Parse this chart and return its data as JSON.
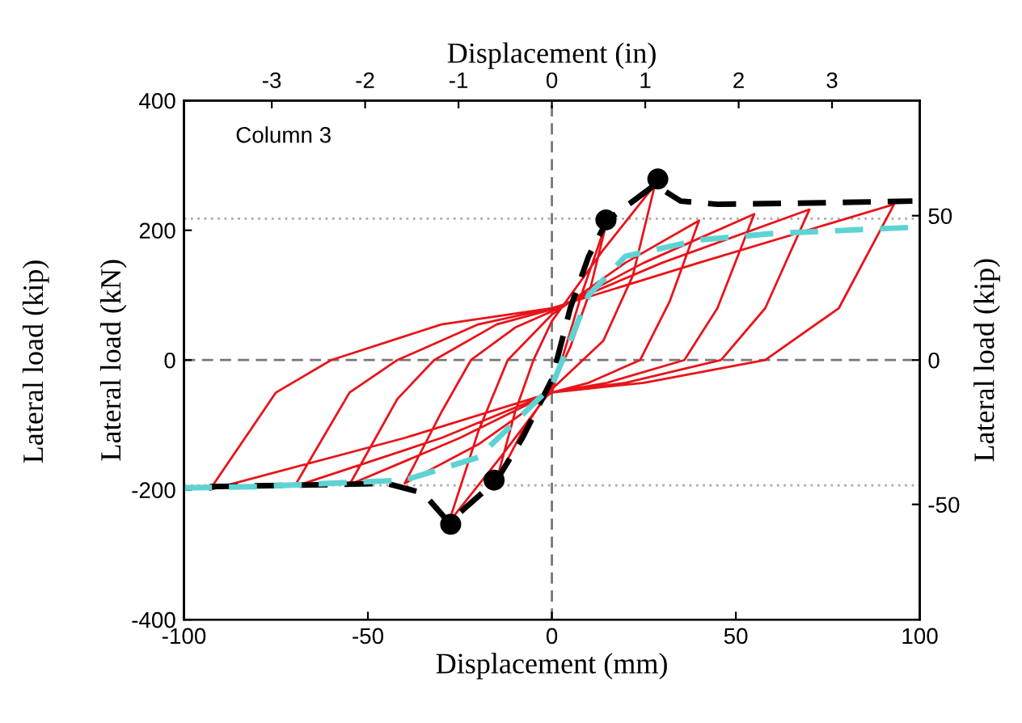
{
  "chart_data": {
    "type": "line",
    "xlabel": "Displacement (mm)",
    "ylabel": "Lateral load (kN)",
    "x2label": "Displacement (in)",
    "y2label": "Lateral load (kip)",
    "annotations": [
      "Column 3",
      "Lateral load (kip)"
    ],
    "xlim": [
      -100,
      100
    ],
    "xticks": [
      -100,
      -50,
      0,
      50,
      100
    ],
    "ylim": [
      -400,
      400
    ],
    "yticks": [
      -400,
      -200,
      0,
      200,
      400
    ],
    "x2lim": [
      -3.94,
      3.94
    ],
    "x2ticks": [
      -3,
      -2,
      -1,
      0,
      1,
      2,
      3
    ],
    "y2lim": [
      -89.9,
      89.9
    ],
    "y2ticks": [
      -50,
      0,
      50
    ],
    "grid": false,
    "ref_lines": [
      {
        "axis": "x",
        "value": 0,
        "color": "#777777",
        "line_style": "dashed"
      },
      {
        "axis": "y",
        "value": 0,
        "color": "#777777",
        "line_style": "dashed"
      },
      {
        "axis": "y",
        "value": 218,
        "color": "#aaaaaa",
        "line_style": "dotted"
      },
      {
        "axis": "y",
        "value": -193,
        "color": "#aaaaaa",
        "line_style": "dotted"
      }
    ],
    "series": [
      {
        "color": "#e8141a",
        "line_style": "solid",
        "marker": "none",
        "x": [
          0,
          8,
          15,
          10,
          5,
          0,
          -8,
          -15,
          -10,
          -5,
          0,
          14,
          28,
          22,
          14,
          0,
          -14,
          -28,
          -20,
          -12,
          0,
          20,
          40,
          32,
          24,
          10,
          0,
          -20,
          -40,
          -30,
          -22,
          -10,
          0,
          25,
          55,
          45,
          36,
          15,
          0,
          -25,
          -55,
          -42,
          -32,
          -15,
          0,
          30,
          70,
          58,
          46,
          20,
          0,
          -30,
          -70,
          -55,
          -42,
          -20,
          0,
          40,
          93,
          78,
          58,
          25,
          0,
          -40,
          -93,
          -75,
          -60,
          -30,
          0
        ],
        "values": [
          -50,
          100,
          215,
          100,
          20,
          -40,
          -110,
          -185,
          -80,
          0,
          60,
          170,
          270,
          130,
          30,
          -45,
          -150,
          -250,
          -110,
          0,
          70,
          150,
          215,
          90,
          0,
          -35,
          -50,
          -130,
          -190,
          -80,
          0,
          50,
          75,
          150,
          225,
          80,
          0,
          -35,
          -50,
          -120,
          -192,
          -60,
          0,
          55,
          78,
          150,
          232,
          80,
          0,
          -35,
          -50,
          -120,
          -195,
          -50,
          0,
          55,
          80,
          150,
          240,
          80,
          0,
          -35,
          -50,
          -120,
          -200,
          -50,
          0,
          55,
          80
        ]
      },
      {
        "color": "#000000",
        "line_style": "dashed",
        "marker": "none",
        "x": [
          -93,
          -60,
          -45,
          -35,
          -28,
          -15,
          -8,
          0,
          5,
          10,
          15,
          28,
          35,
          45,
          70,
          98
        ],
        "values": [
          -195,
          -192,
          -190,
          -205,
          -250,
          -185,
          -120,
          -30,
          80,
          160,
          215,
          270,
          245,
          240,
          242,
          245
        ]
      },
      {
        "color": "#5fd3d3",
        "line_style": "dashed",
        "marker": "none",
        "x": [
          -100,
          -80,
          -40,
          -20,
          0,
          10,
          20,
          40,
          60,
          100
        ],
        "values": [
          -197,
          -195,
          -185,
          -150,
          -40,
          100,
          160,
          185,
          195,
          205
        ]
      },
      {
        "type": "scatter",
        "color": "#000000",
        "marker": "circle",
        "x": [
          28.8,
          14.7,
          -27.5,
          -15.7
        ],
        "values": [
          279,
          216,
          -253,
          -185
        ]
      }
    ]
  }
}
